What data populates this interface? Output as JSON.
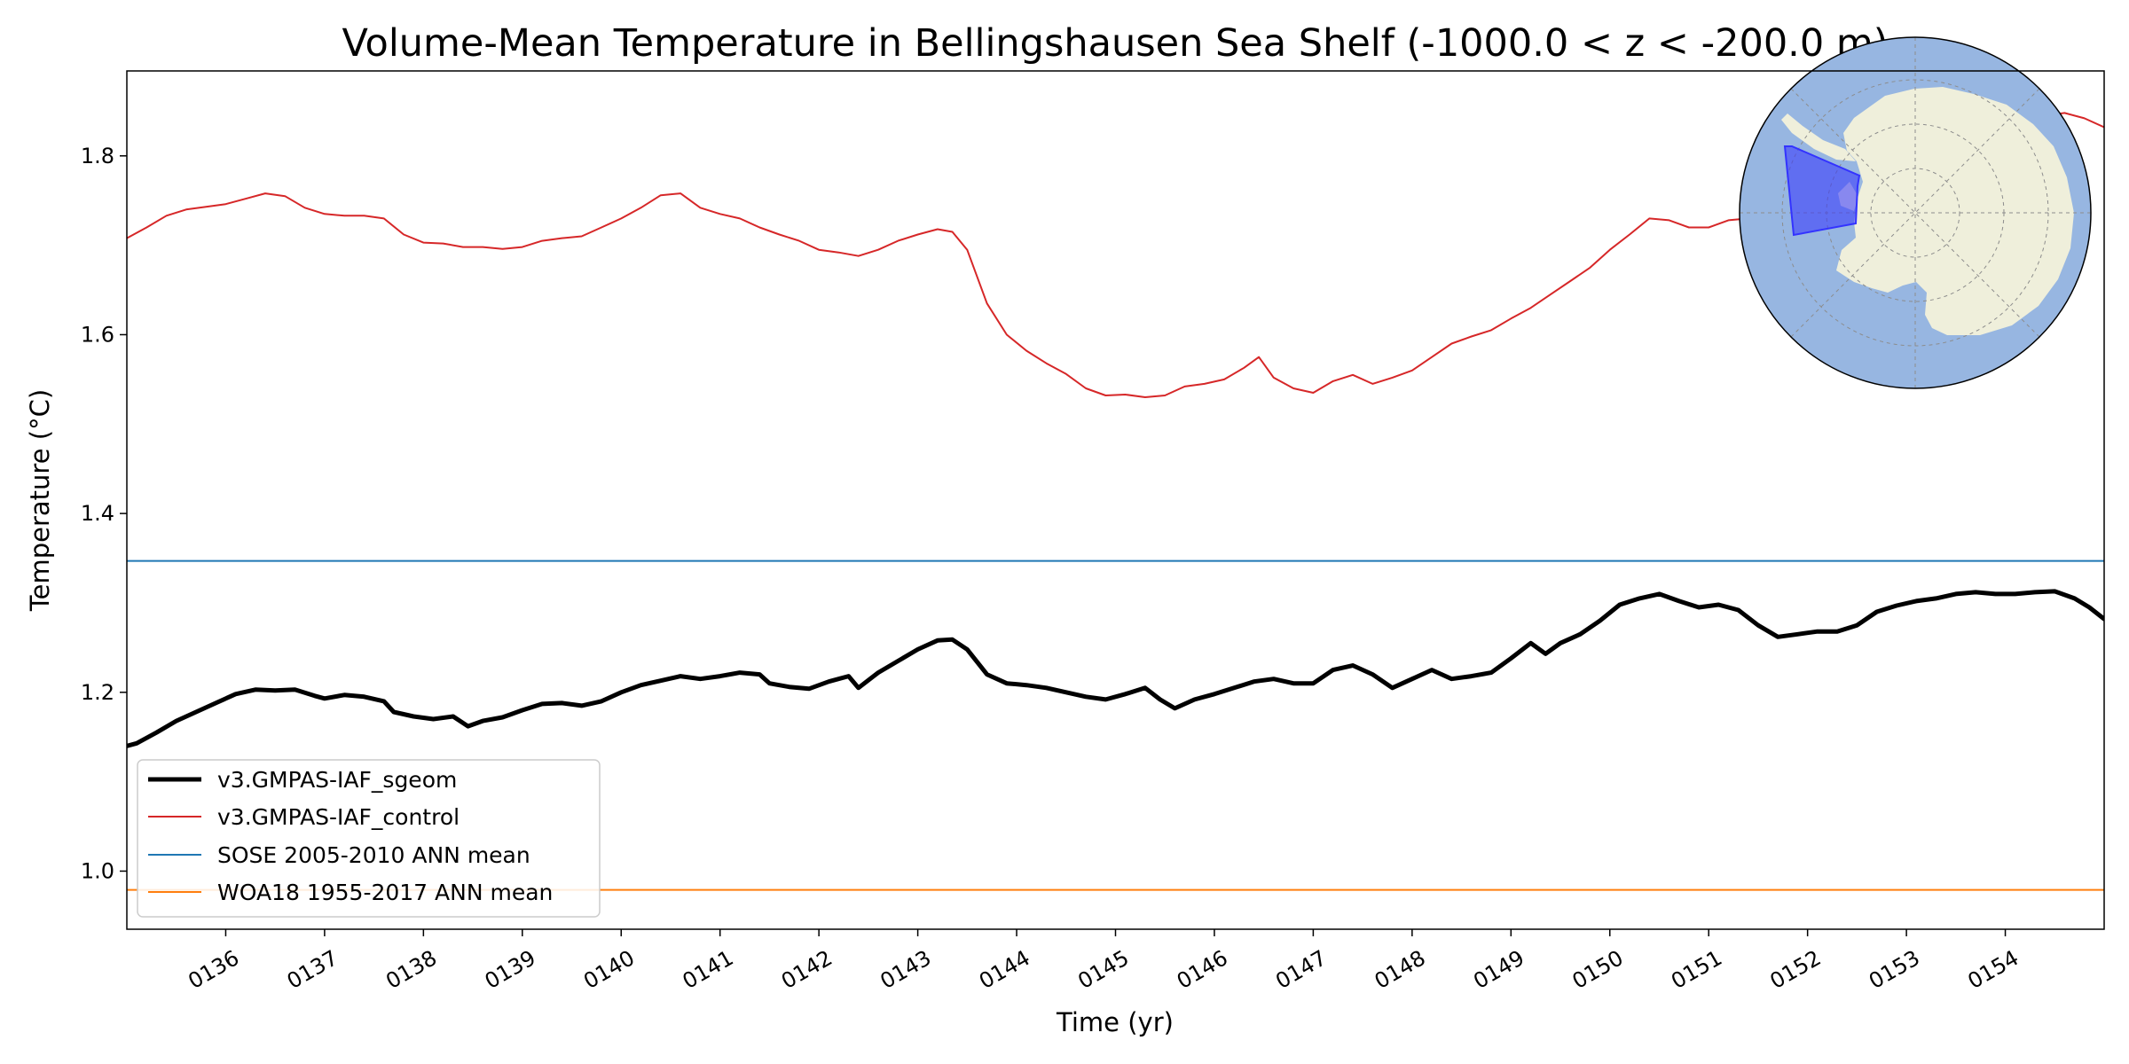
{
  "chart_data": {
    "type": "line",
    "title": "Volume-Mean Temperature in Bellingshausen Sea Shelf (-1000.0 < z < -200.0 m)",
    "xlabel": "Time (yr)",
    "ylabel": "Temperature (°C)",
    "xlim": [
      135.0,
      155.0
    ],
    "ylim": [
      0.935,
      1.895
    ],
    "yticks": [
      1.0,
      1.2,
      1.4,
      1.6,
      1.8
    ],
    "ytick_labels": [
      "1.0",
      "1.2",
      "1.4",
      "1.6",
      "1.8"
    ],
    "xticks": [
      136,
      137,
      138,
      139,
      140,
      141,
      142,
      143,
      144,
      145,
      146,
      147,
      148,
      149,
      150,
      151,
      152,
      153,
      154
    ],
    "xtick_labels": [
      "0136",
      "0137",
      "0138",
      "0139",
      "0140",
      "0141",
      "0142",
      "0143",
      "0144",
      "0145",
      "0146",
      "0147",
      "0148",
      "0149",
      "0150",
      "0151",
      "0152",
      "0153",
      "0154"
    ],
    "legend_position": "lower-left",
    "inset": "south-polar-map-bellingshausen-region",
    "series": [
      {
        "name": "v3.GMPAS-IAF_sgeom",
        "color": "#000000",
        "style": "thick",
        "x": [
          135.0,
          135.1,
          135.3,
          135.5,
          135.7,
          135.9,
          136.1,
          136.3,
          136.5,
          136.7,
          136.9,
          137.0,
          137.2,
          137.4,
          137.6,
          137.7,
          137.9,
          138.1,
          138.3,
          138.45,
          138.6,
          138.8,
          139.0,
          139.2,
          139.4,
          139.6,
          139.8,
          140.0,
          140.2,
          140.4,
          140.6,
          140.8,
          141.0,
          141.2,
          141.4,
          141.5,
          141.7,
          141.9,
          142.1,
          142.3,
          142.4,
          142.6,
          142.8,
          143.0,
          143.2,
          143.35,
          143.5,
          143.7,
          143.9,
          144.1,
          144.3,
          144.5,
          144.7,
          144.9,
          145.1,
          145.3,
          145.45,
          145.6,
          145.8,
          146.0,
          146.2,
          146.4,
          146.6,
          146.8,
          147.0,
          147.2,
          147.4,
          147.6,
          147.8,
          148.0,
          148.2,
          148.4,
          148.6,
          148.8,
          149.0,
          149.2,
          149.35,
          149.5,
          149.7,
          149.9,
          150.1,
          150.3,
          150.5,
          150.7,
          150.9,
          151.1,
          151.3,
          151.5,
          151.7,
          151.9,
          152.1,
          152.3,
          152.5,
          152.7,
          152.9,
          153.1,
          153.3,
          153.5,
          153.7,
          153.9,
          154.1,
          154.3,
          154.5,
          154.7,
          154.85,
          155.0
        ],
        "y": [
          1.14,
          1.143,
          1.155,
          1.168,
          1.178,
          1.188,
          1.198,
          1.203,
          1.202,
          1.203,
          1.196,
          1.193,
          1.197,
          1.195,
          1.19,
          1.178,
          1.173,
          1.17,
          1.173,
          1.162,
          1.168,
          1.172,
          1.18,
          1.187,
          1.188,
          1.185,
          1.19,
          1.2,
          1.208,
          1.213,
          1.218,
          1.215,
          1.218,
          1.222,
          1.22,
          1.21,
          1.206,
          1.204,
          1.212,
          1.218,
          1.205,
          1.222,
          1.235,
          1.248,
          1.258,
          1.259,
          1.248,
          1.22,
          1.21,
          1.208,
          1.205,
          1.2,
          1.195,
          1.192,
          1.198,
          1.205,
          1.192,
          1.182,
          1.192,
          1.198,
          1.205,
          1.212,
          1.215,
          1.21,
          1.21,
          1.225,
          1.23,
          1.22,
          1.205,
          1.215,
          1.225,
          1.215,
          1.218,
          1.222,
          1.238,
          1.255,
          1.243,
          1.255,
          1.265,
          1.28,
          1.298,
          1.305,
          1.31,
          1.302,
          1.295,
          1.298,
          1.292,
          1.275,
          1.262,
          1.265,
          1.268,
          1.268,
          1.275,
          1.29,
          1.297,
          1.302,
          1.305,
          1.31,
          1.312,
          1.31,
          1.31,
          1.312,
          1.313,
          1.305,
          1.295,
          1.282
        ]
      },
      {
        "name": "v3.GMPAS-IAF_control",
        "color": "#d62728",
        "style": "thin",
        "x": [
          135.0,
          135.2,
          135.4,
          135.6,
          135.8,
          136.0,
          136.2,
          136.4,
          136.6,
          136.8,
          137.0,
          137.2,
          137.4,
          137.6,
          137.8,
          138.0,
          138.2,
          138.4,
          138.6,
          138.8,
          139.0,
          139.2,
          139.4,
          139.6,
          139.8,
          140.0,
          140.2,
          140.4,
          140.6,
          140.8,
          141.0,
          141.2,
          141.4,
          141.6,
          141.8,
          142.0,
          142.2,
          142.4,
          142.6,
          142.8,
          143.0,
          143.2,
          143.35,
          143.5,
          143.7,
          143.9,
          144.1,
          144.3,
          144.5,
          144.7,
          144.9,
          145.1,
          145.3,
          145.5,
          145.7,
          145.9,
          146.1,
          146.3,
          146.45,
          146.6,
          146.8,
          147.0,
          147.2,
          147.4,
          147.6,
          147.8,
          148.0,
          148.2,
          148.4,
          148.6,
          148.8,
          149.0,
          149.2,
          149.4,
          149.6,
          149.8,
          150.0,
          150.2,
          150.4,
          150.6,
          150.8,
          151.0,
          151.2,
          151.4,
          151.6,
          151.8,
          152.0,
          152.2,
          152.4,
          152.6,
          152.8,
          153.0,
          153.2,
          153.4,
          153.6,
          153.8,
          154.0,
          154.2,
          154.4,
          154.6,
          154.8,
          155.0
        ],
        "y": [
          1.708,
          1.72,
          1.733,
          1.74,
          1.743,
          1.746,
          1.752,
          1.758,
          1.755,
          1.742,
          1.735,
          1.733,
          1.733,
          1.73,
          1.712,
          1.703,
          1.702,
          1.698,
          1.698,
          1.696,
          1.698,
          1.705,
          1.708,
          1.71,
          1.72,
          1.73,
          1.742,
          1.756,
          1.758,
          1.742,
          1.735,
          1.73,
          1.72,
          1.712,
          1.705,
          1.695,
          1.692,
          1.688,
          1.695,
          1.705,
          1.712,
          1.718,
          1.715,
          1.695,
          1.635,
          1.6,
          1.582,
          1.568,
          1.556,
          1.54,
          1.532,
          1.533,
          1.53,
          1.532,
          1.542,
          1.545,
          1.55,
          1.563,
          1.575,
          1.552,
          1.54,
          1.535,
          1.548,
          1.555,
          1.545,
          1.552,
          1.56,
          1.575,
          1.59,
          1.598,
          1.605,
          1.618,
          1.63,
          1.645,
          1.66,
          1.675,
          1.695,
          1.712,
          1.73,
          1.728,
          1.72,
          1.72,
          1.728,
          1.73,
          1.728,
          1.732,
          1.738,
          1.745,
          1.752,
          1.76,
          1.77,
          1.78,
          1.792,
          1.802,
          1.812,
          1.822,
          1.83,
          1.838,
          1.845,
          1.848,
          1.842,
          1.832
        ]
      },
      {
        "name": "SOSE 2005-2010 ANN mean",
        "color": "#1f77b4",
        "style": "hline",
        "value": 1.347
      },
      {
        "name": "WOA18 1955-2017 ANN mean",
        "color": "#ff7f0e",
        "style": "hline",
        "value": 0.979
      }
    ]
  }
}
